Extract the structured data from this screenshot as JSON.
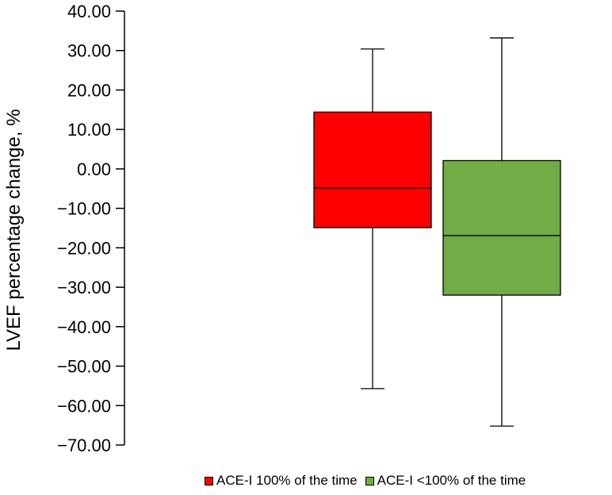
{
  "chart_data": {
    "type": "boxplot",
    "ylabel": "LVEF percentage change, %",
    "ylim": [
      -70,
      40
    ],
    "yticks": [
      40,
      30,
      20,
      10,
      0,
      -10,
      -20,
      -30,
      -40,
      -50,
      -60,
      -70
    ],
    "ytick_labels": [
      "40.00",
      "30.00",
      "20.00",
      "10.00",
      "0.00",
      "−10.00",
      "−20.00",
      "−30.00",
      "−40.00",
      "−50.00",
      "−60.00",
      "−70.00"
    ],
    "series": [
      {
        "name": "ACE-I 100% of the time",
        "color": "#ff0000",
        "whisker_low": -55.7,
        "q1": -14.9,
        "median": -4.9,
        "q3": 14.4,
        "whisker_high": 30.4
      },
      {
        "name": "ACE-I <100% of the time",
        "color": "#70ad47",
        "whisker_low": -65.2,
        "q1": -32.0,
        "median": -16.9,
        "q3": 2.1,
        "whisker_high": 33.2
      }
    ],
    "grid": false,
    "legend_position": "bottom"
  }
}
